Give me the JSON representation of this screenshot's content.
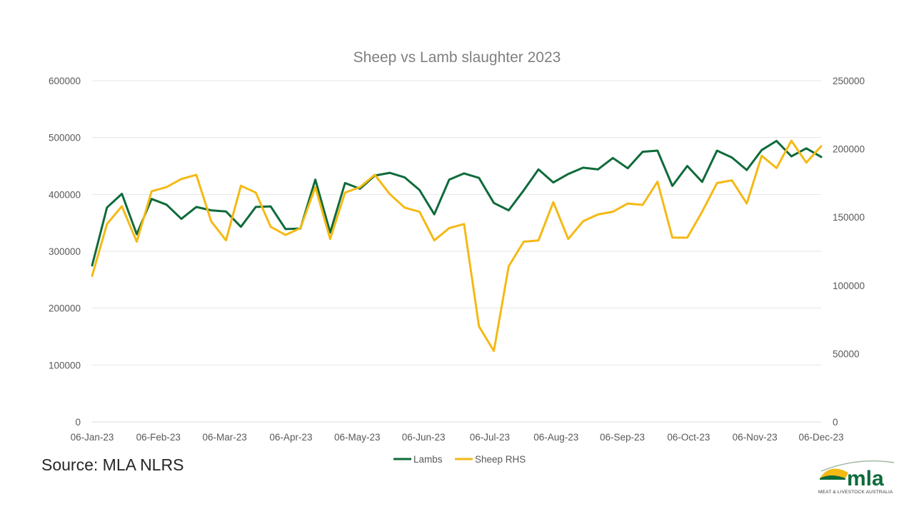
{
  "chart_data": {
    "type": "line",
    "title": "Sheep vs Lamb slaughter 2023",
    "x_tick_labels": [
      "06-Jan-23",
      "06-Feb-23",
      "06-Mar-23",
      "06-Apr-23",
      "06-May-23",
      "06-Jun-23",
      "06-Jul-23",
      "06-Aug-23",
      "06-Sep-23",
      "06-Oct-23",
      "06-Nov-23",
      "06-Dec-23"
    ],
    "y_left": {
      "ylim": [
        0,
        600000
      ],
      "ticks": [
        "0",
        "100000",
        "200000",
        "300000",
        "400000",
        "500000",
        "600000"
      ]
    },
    "y_right": {
      "ylim": [
        0,
        250000
      ],
      "ticks": [
        "0",
        "50000",
        "100000",
        "150000",
        "200000",
        "250000"
      ]
    },
    "grid": true,
    "legend_position": "bottom-center",
    "series": [
      {
        "name": "Lambs",
        "axis": "left",
        "color": "#0e6b3a",
        "values": [
          275000,
          377000,
          401000,
          330000,
          392000,
          382000,
          357000,
          378000,
          372000,
          370000,
          343000,
          378000,
          379000,
          339000,
          340000,
          426000,
          333000,
          420000,
          410000,
          433000,
          438000,
          430000,
          408000,
          365000,
          426000,
          437000,
          429000,
          385000,
          372000,
          407000,
          444000,
          421000,
          436000,
          447000,
          444000,
          464000,
          446000,
          475000,
          477000,
          415000,
          450000,
          422000,
          477000,
          465000,
          443000,
          478000,
          494000,
          467000,
          481000,
          466000
        ]
      },
      {
        "name": "Sheep RHS",
        "axis": "right",
        "color": "#f5b914",
        "values": [
          107000,
          145000,
          158000,
          132000,
          169000,
          172000,
          178000,
          181000,
          147000,
          133000,
          173000,
          168000,
          143000,
          137000,
          142000,
          172000,
          134000,
          168000,
          172000,
          181000,
          167000,
          157000,
          154000,
          133000,
          142000,
          145000,
          70000,
          52000,
          114000,
          132000,
          133000,
          161000,
          134000,
          147000,
          152000,
          154000,
          160000,
          159000,
          176000,
          135000,
          135000,
          154000,
          175000,
          177000,
          160000,
          195000,
          186000,
          206000,
          190000,
          202000
        ]
      }
    ]
  },
  "source_text": "Source: MLA NLRS",
  "logo": {
    "wordmark": "mla",
    "tagline": "MEAT & LIVESTOCK AUSTRALIA",
    "colors": {
      "green": "#0e6b3a",
      "gold": "#f5b914"
    }
  }
}
